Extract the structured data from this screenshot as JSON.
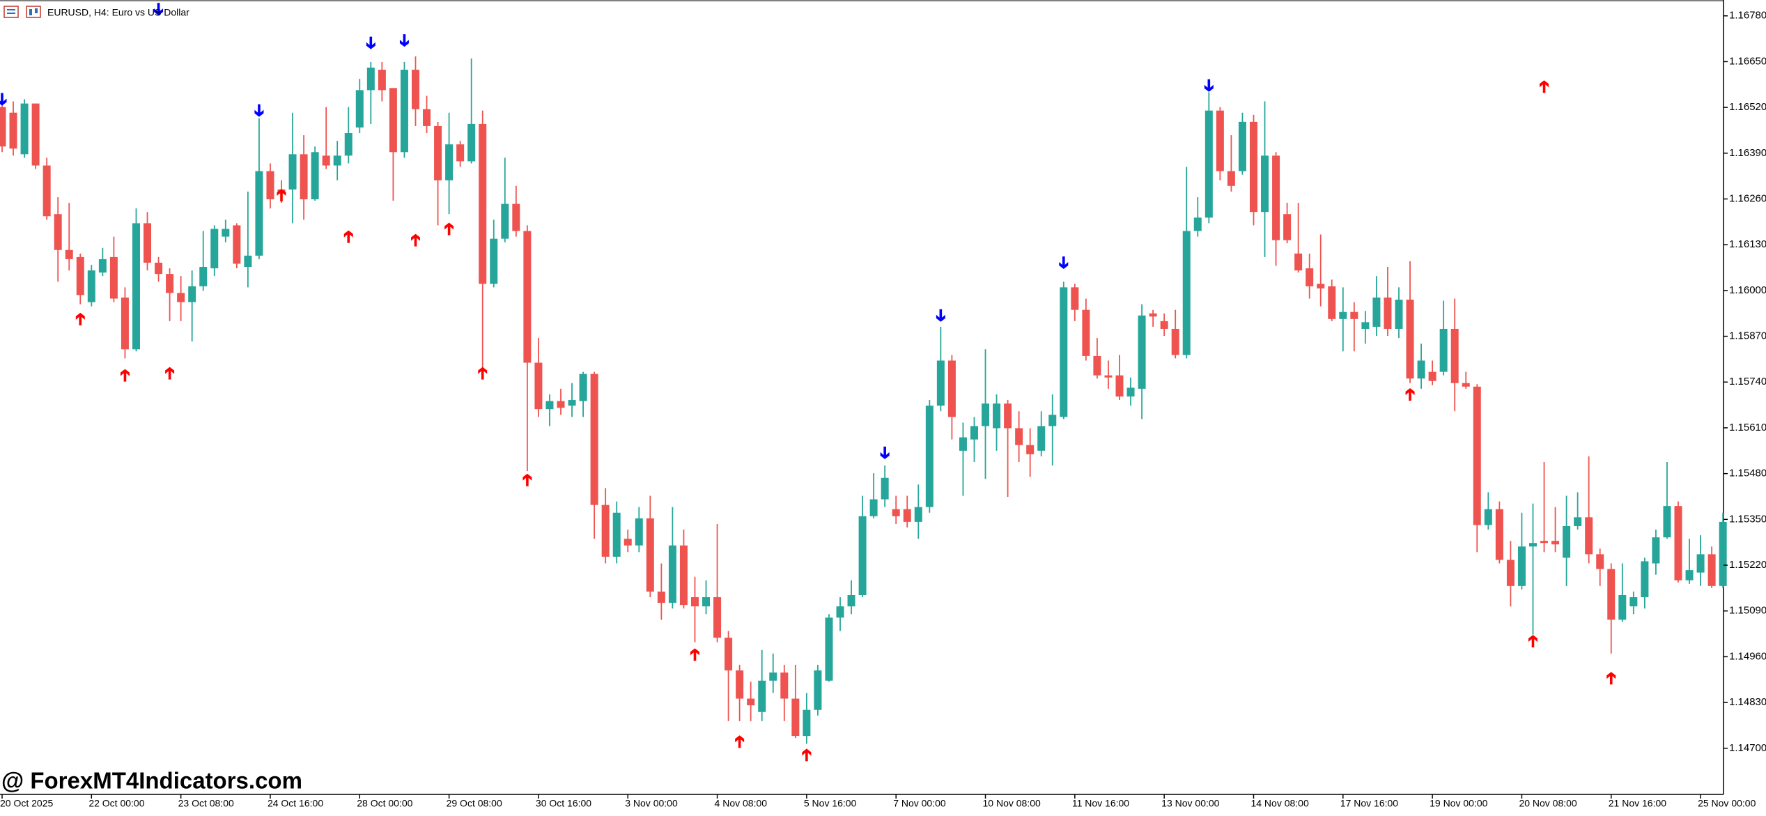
{
  "chart_data": {
    "type": "candlestick",
    "title": "EURUSD, H4:  Euro vs US Dollar",
    "watermark": "@ ForexMT4Indicators.com",
    "bull_color": "#26a69a",
    "bear_color": "#ef5350",
    "categories": [
      "20 Oct 2025",
      null,
      null,
      null,
      null,
      null,
      null,
      null,
      "22 Oct 00:00",
      null,
      null,
      null,
      null,
      null,
      null,
      null,
      "23 Oct 08:00",
      null,
      null,
      null,
      null,
      null,
      null,
      null,
      "24 Oct 16:00",
      null,
      null,
      null,
      null,
      null,
      null,
      null,
      "28 Oct 00:00",
      null,
      null,
      null,
      null,
      null,
      null,
      null,
      "29 Oct 08:00",
      null,
      null,
      null,
      null,
      null,
      null,
      null,
      "30 Oct 16:00",
      null,
      null,
      null,
      null,
      null,
      null,
      null,
      "3 Nov 00:00",
      null,
      null,
      null,
      null,
      null,
      null,
      null,
      "4 Nov 08:00",
      null,
      null,
      null,
      null,
      null,
      null,
      null,
      "5 Nov 16:00",
      null,
      null,
      null,
      null,
      null,
      null,
      null,
      "7 Nov 00:00",
      null,
      null,
      null,
      null,
      null,
      null,
      null,
      "10 Nov 08:00",
      null,
      null,
      null,
      null,
      null,
      null,
      null,
      "11 Nov 16:00",
      null,
      null,
      null,
      null,
      null,
      null,
      null,
      "13 Nov 00:00",
      null,
      null,
      null,
      null,
      null,
      null,
      null,
      "14 Nov 08:00",
      null,
      null,
      null,
      null,
      null,
      null,
      null,
      "17 Nov 16:00",
      null,
      null,
      null,
      null,
      null,
      null,
      null,
      "19 Nov 00:00",
      null,
      null,
      null,
      null,
      null,
      null,
      null,
      "20 Nov 08:00",
      null,
      null,
      null,
      null,
      null,
      null,
      null,
      "21 Nov 16:00",
      null,
      null,
      null,
      null,
      null,
      null,
      null,
      "25 Nov 00:00",
      null,
      null
    ],
    "open": [
      1.16521,
      1.16505,
      1.16387,
      1.16531,
      1.16355,
      1.16217,
      1.16115,
      1.16095,
      1.15967,
      1.16051,
      1.16095,
      1.1598,
      1.15833,
      1.16191,
      1.16079,
      1.16047,
      1.15993,
      1.15967,
      1.16012,
      1.16063,
      1.16153,
      1.16185,
      1.16067,
      1.16099,
      1.16339,
      1.16287,
      1.16287,
      1.16387,
      1.16259,
      1.16383,
      1.16355,
      1.16383,
      1.16463,
      1.16569,
      1.16627,
      1.16575,
      1.16393,
      1.16627,
      1.16515,
      1.16467,
      1.16313,
      1.16415,
      1.16367,
      1.16473,
      1.16019,
      1.16147,
      1.16246,
      1.16169,
      1.15795,
      1.15663,
      1.15686,
      1.15673,
      1.15686,
      1.15763,
      1.15391,
      1.15244,
      1.15295,
      1.15276,
      1.15353,
      1.15145,
      1.15113,
      1.15276,
      1.15129,
      1.15103,
      1.15129,
      1.15014,
      1.14921,
      1.14841,
      1.14803,
      1.14892,
      1.14915,
      1.14841,
      1.14735,
      1.14809,
      1.14892,
      1.15071,
      1.15103,
      1.15135,
      1.15359,
      1.15407,
      1.15379,
      1.15379,
      1.15343,
      1.15385,
      1.15673,
      1.15801,
      1.15545,
      1.15577,
      1.15615,
      1.15609,
      1.15679,
      1.15609,
      1.15561,
      1.15545,
      1.15615,
      1.15641,
      1.16009,
      1.15945,
      1.15814,
      1.15759,
      1.15759,
      1.15699,
      1.15721,
      1.15935,
      1.15913,
      1.15891,
      1.15817,
      1.16169,
      1.16207,
      1.16511,
      1.16339,
      1.16339,
      1.16479,
      1.16223,
      1.16383,
      1.16217,
      1.16105,
      1.16063,
      1.16019,
      1.16012,
      1.15919,
      1.15939,
      1.15891,
      1.15897,
      1.1598,
      1.15891,
      1.15974,
      1.1575,
      1.15769,
      1.15769,
      1.15891,
      1.15737,
      1.15727,
      1.15334,
      1.15379,
      1.15235,
      1.15161,
      1.15273,
      1.15289,
      1.15289,
      1.15241,
      1.15331,
      1.15356,
      1.15251,
      1.15209,
      1.15065,
      1.15103,
      1.15129,
      1.15225,
      1.15299,
      1.15388,
      1.15177,
      1.15199,
      1.15251,
      1.15161
    ],
    "high": [
      1.16543,
      1.16537,
      1.16543,
      1.16531,
      1.16377,
      1.16265,
      1.16249,
      1.16105,
      1.16073,
      1.16121,
      1.16153,
      1.16009,
      1.16233,
      1.16223,
      1.16095,
      1.16063,
      1.16041,
      1.16057,
      1.16169,
      1.16185,
      1.16201,
      1.16191,
      1.16281,
      1.16489,
      1.16361,
      1.16313,
      1.16505,
      1.16441,
      1.16409,
      1.16521,
      1.16425,
      1.16521,
      1.16601,
      1.16649,
      1.16649,
      1.16575,
      1.16649,
      1.16665,
      1.16553,
      1.16479,
      1.16505,
      1.16425,
      1.16659,
      1.16511,
      1.16201,
      1.16377,
      1.16297,
      1.16185,
      1.15865,
      1.15705,
      1.15721,
      1.15737,
      1.15769,
      1.15769,
      1.15439,
      1.15401,
      1.15321,
      1.15385,
      1.15417,
      1.15225,
      1.15385,
      1.15321,
      1.15187,
      1.15177,
      1.15337,
      1.15033,
      1.14937,
      1.14889,
      1.14979,
      1.14969,
      1.14937,
      1.14937,
      1.14857,
      1.14937,
      1.15081,
      1.15129,
      1.15177,
      1.15417,
      1.15481,
      1.15503,
      1.15417,
      1.15417,
      1.15449,
      1.15689,
      1.15897,
      1.15817,
      1.15625,
      1.15641,
      1.15833,
      1.15705,
      1.15689,
      1.15657,
      1.15609,
      1.15657,
      1.15705,
      1.16025,
      1.16019,
      1.15977,
      1.15865,
      1.15801,
      1.15817,
      1.15753,
      1.15961,
      1.15945,
      1.15935,
      1.15945,
      1.16351,
      1.16265,
      1.16563,
      1.16521,
      1.16441,
      1.16505,
      1.16499,
      1.16537,
      1.16393,
      1.16249,
      1.16249,
      1.16105,
      1.16159,
      1.16031,
      1.16009,
      1.15967,
      1.15942,
      1.16041,
      1.16067,
      1.16009,
      1.16083,
      1.15849,
      1.15801,
      1.15971,
      1.15977,
      1.15769,
      1.15734,
      1.15427,
      1.15401,
      1.15289,
      1.15369,
      1.15395,
      1.15513,
      1.15385,
      1.15417,
      1.15427,
      1.15529,
      1.15267,
      1.15225,
      1.15225,
      1.15145,
      1.15241,
      1.15321,
      1.15513,
      1.15401,
      1.15295,
      1.15305,
      1.15273,
      1.15369
    ],
    "low": [
      1.16393,
      1.16383,
      1.16377,
      1.16345,
      1.16201,
      1.16025,
      1.16057,
      1.15961,
      1.15955,
      1.16041,
      1.15967,
      1.15807,
      1.15827,
      1.16057,
      1.16025,
      1.15913,
      1.15913,
      1.15855,
      1.15999,
      1.16041,
      1.16137,
      1.16063,
      1.16009,
      1.16089,
      1.16233,
      1.16249,
      1.16191,
      1.16201,
      1.16255,
      1.16345,
      1.16313,
      1.16361,
      1.16447,
      1.16473,
      1.16537,
      1.16255,
      1.16377,
      1.16467,
      1.16447,
      1.16185,
      1.16217,
      1.16351,
      1.16361,
      1.15769,
      1.16009,
      1.16137,
      1.16153,
      1.15487,
      1.15641,
      1.15615,
      1.15647,
      1.15641,
      1.15641,
      1.15295,
      1.15225,
      1.15225,
      1.15257,
      1.15257,
      1.15129,
      1.15065,
      1.15097,
      1.15097,
      1.15001,
      1.15081,
      1.15001,
      1.14777,
      1.14777,
      1.14777,
      1.14777,
      1.14857,
      1.14777,
      1.14729,
      1.14713,
      1.14793,
      1.14889,
      1.15033,
      1.15081,
      1.15129,
      1.15353,
      1.15385,
      1.15337,
      1.15327,
      1.15295,
      1.15369,
      1.15657,
      1.15577,
      1.15417,
      1.15513,
      1.15465,
      1.15545,
      1.15414,
      1.15513,
      1.15471,
      1.15529,
      1.15503,
      1.15635,
      1.15913,
      1.15801,
      1.1575,
      1.15721,
      1.15689,
      1.15673,
      1.15635,
      1.15897,
      1.15871,
      1.15807,
      1.15807,
      1.16153,
      1.16191,
      1.16313,
      1.16281,
      1.16329,
      1.16185,
      1.16095,
      1.1607,
      1.16134,
      1.16051,
      1.15977,
      1.15955,
      1.15913,
      1.15827,
      1.15827,
      1.15849,
      1.15871,
      1.15871,
      1.15865,
      1.15737,
      1.15721,
      1.15731,
      1.15759,
      1.15657,
      1.15721,
      1.15257,
      1.15321,
      1.15225,
      1.15103,
      1.15151,
      1.15023,
      1.15257,
      1.15257,
      1.15161,
      1.15321,
      1.15225,
      1.15161,
      1.14969,
      1.15059,
      1.15081,
      1.15097,
      1.15193,
      1.15295,
      1.15171,
      1.15167,
      1.15161,
      1.15155,
      1.15155
    ],
    "close": [
      1.16409,
      1.16403,
      1.16531,
      1.16355,
      1.16211,
      1.16115,
      1.16089,
      1.15987,
      1.16057,
      1.16089,
      1.15977,
      1.15833,
      1.16191,
      1.16079,
      1.16047,
      1.15993,
      1.15967,
      1.16012,
      1.16067,
      1.16175,
      1.16175,
      1.16076,
      1.16099,
      1.16339,
      1.16259,
      1.16275,
      1.16387,
      1.16259,
      1.16393,
      1.16355,
      1.16383,
      1.16447,
      1.16569,
      1.16633,
      1.16569,
      1.16393,
      1.16627,
      1.16515,
      1.16467,
      1.16313,
      1.16415,
      1.16367,
      1.16473,
      1.16019,
      1.16147,
      1.16246,
      1.16169,
      1.15795,
      1.15663,
      1.15686,
      1.15667,
      1.15689,
      1.15763,
      1.15391,
      1.15244,
      1.15369,
      1.15276,
      1.15353,
      1.15145,
      1.15113,
      1.15276,
      1.15107,
      1.15103,
      1.15129,
      1.15014,
      1.14921,
      1.14841,
      1.14822,
      1.14892,
      1.14915,
      1.14841,
      1.14735,
      1.14809,
      1.14921,
      1.15071,
      1.15103,
      1.15135,
      1.15359,
      1.15407,
      1.15468,
      1.15359,
      1.15343,
      1.15385,
      1.15673,
      1.15801,
      1.15641,
      1.15583,
      1.15615,
      1.15679,
      1.15679,
      1.15609,
      1.15561,
      1.15535,
      1.15615,
      1.15647,
      1.16009,
      1.15945,
      1.15814,
      1.15759,
      1.15753,
      1.15699,
      1.15724,
      1.15929,
      1.15926,
      1.15891,
      1.15817,
      1.16169,
      1.16207,
      1.16511,
      1.16339,
      1.16297,
      1.16479,
      1.16223,
      1.16383,
      1.16143,
      1.16143,
      1.16057,
      1.16012,
      1.16006,
      1.15919,
      1.15939,
      1.15919,
      1.1591,
      1.1598,
      1.15891,
      1.15974,
      1.1575,
      1.15801,
      1.15743,
      1.15891,
      1.15737,
      1.15727,
      1.15334,
      1.15379,
      1.15235,
      1.15161,
      1.15273,
      1.15283,
      1.15283,
      1.15279,
      1.15331,
      1.15356,
      1.15251,
      1.15209,
      1.15065,
      1.15135,
      1.15129,
      1.15231,
      1.15299,
      1.15388,
      1.15177,
      1.15206,
      1.15251,
      1.15161,
      1.15343
    ],
    "up_arrows": {
      "color": "#ff0000",
      "values": [
        null,
        null,
        null,
        null,
        null,
        null,
        null,
        1.15919,
        null,
        null,
        null,
        1.15759,
        null,
        null,
        null,
        1.15765,
        null,
        null,
        null,
        null,
        null,
        null,
        null,
        null,
        null,
        1.16271,
        null,
        null,
        null,
        null,
        null,
        1.16153,
        null,
        null,
        null,
        null,
        null,
        1.16143,
        null,
        null,
        1.16175,
        null,
        null,
        1.15765,
        null,
        null,
        null,
        1.15462,
        null,
        null,
        null,
        null,
        null,
        null,
        null,
        null,
        null,
        null,
        null,
        null,
        null,
        null,
        1.14966,
        null,
        null,
        null,
        1.14719,
        null,
        null,
        null,
        null,
        null,
        1.14681,
        null,
        null,
        null,
        null,
        null,
        null,
        null,
        null,
        null,
        null,
        null,
        null,
        null,
        null,
        null,
        null,
        null,
        null,
        null,
        null,
        null,
        null,
        null,
        null,
        null,
        null,
        null,
        null,
        null,
        null,
        null,
        null,
        null,
        null,
        null,
        null,
        null,
        null,
        null,
        null,
        null,
        null,
        null,
        null,
        null,
        null,
        null,
        null,
        null,
        null,
        null,
        null,
        null,
        1.15705,
        null,
        null,
        null,
        null,
        null,
        null,
        null,
        null,
        null,
        null,
        1.15004,
        1.16579,
        null,
        null,
        null,
        null,
        null,
        1.14899,
        null,
        null,
        null,
        null,
        null,
        null,
        null,
        null,
        null,
        null
      ]
    },
    "down_arrows": {
      "color": "#0000ff",
      "values": [
        1.16543,
        null,
        null,
        null,
        null,
        null,
        null,
        null,
        null,
        null,
        null,
        null,
        null,
        null,
        1.16799,
        null,
        null,
        null,
        null,
        null,
        null,
        null,
        null,
        1.16511,
        null,
        null,
        null,
        null,
        null,
        null,
        null,
        null,
        null,
        1.16703,
        null,
        null,
        1.1671,
        null,
        null,
        null,
        null,
        null,
        null,
        null,
        null,
        null,
        null,
        null,
        null,
        null,
        null,
        null,
        null,
        null,
        null,
        null,
        null,
        null,
        null,
        null,
        null,
        null,
        null,
        null,
        null,
        null,
        null,
        null,
        null,
        null,
        null,
        null,
        null,
        null,
        null,
        null,
        null,
        null,
        null,
        1.15539,
        null,
        null,
        null,
        null,
        1.15929,
        null,
        null,
        null,
        null,
        null,
        null,
        null,
        null,
        null,
        null,
        1.16079,
        null,
        null,
        null,
        null,
        null,
        null,
        null,
        null,
        null,
        null,
        null,
        null,
        1.16582,
        null,
        null,
        null,
        null,
        null,
        null,
        null,
        null,
        null,
        null,
        null,
        null,
        null,
        null,
        null,
        null,
        null,
        null,
        null,
        null,
        null,
        null,
        null,
        null,
        null,
        null,
        null,
        null,
        null,
        null,
        null,
        null,
        null,
        null,
        null,
        null,
        null,
        null,
        null,
        null,
        null,
        null,
        null,
        null,
        null,
        null
      ]
    },
    "ylim": [
      1.14569,
      1.16825
    ],
    "yticks": [
      {
        "value": 1.1678,
        "label": "1.16780"
      },
      {
        "value": 1.1665,
        "label": "1.16650"
      },
      {
        "value": 1.1652,
        "label": "1.16520"
      },
      {
        "value": 1.1639,
        "label": "1.16390"
      },
      {
        "value": 1.1626,
        "label": "1.16260"
      },
      {
        "value": 1.1613,
        "label": "1.16130"
      },
      {
        "value": 1.16,
        "label": "1.16000"
      },
      {
        "value": 1.1587,
        "label": "1.15870"
      },
      {
        "value": 1.1574,
        "label": "1.15740"
      },
      {
        "value": 1.1561,
        "label": "1.15610"
      },
      {
        "value": 1.1548,
        "label": "1.15480"
      },
      {
        "value": 1.1535,
        "label": "1.15350"
      },
      {
        "value": 1.1522,
        "label": "1.15220"
      },
      {
        "value": 1.1509,
        "label": "1.15090"
      },
      {
        "value": 1.1496,
        "label": "1.14960"
      },
      {
        "value": 1.1483,
        "label": "1.14830"
      },
      {
        "value": 1.147,
        "label": "1.14700"
      }
    ],
    "grid": false
  }
}
